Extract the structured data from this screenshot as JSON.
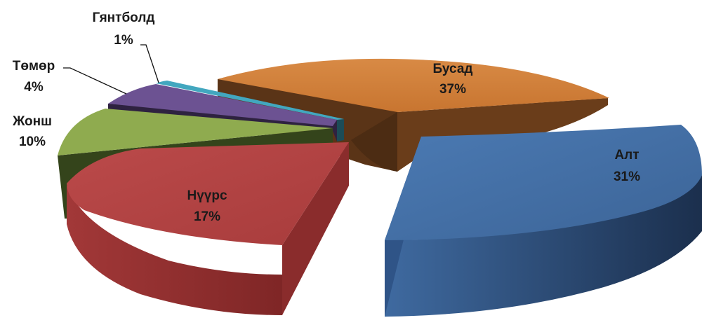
{
  "chart_data": {
    "type": "pie",
    "style": "3d-exploded",
    "title": "",
    "slices": [
      {
        "label": "Бусад",
        "value": 37,
        "value_label": "37%",
        "color": "#d07f37",
        "side_color": "#5a3417"
      },
      {
        "label": "Алт",
        "value": 31,
        "value_label": "31%",
        "color": "#4471a8",
        "side_color": "#1e3556"
      },
      {
        "label": "Нүүрс",
        "value": 17,
        "value_label": "17%",
        "color": "#b54444",
        "side_color": "#9a3232"
      },
      {
        "label": "Жонш",
        "value": 10,
        "value_label": "10%",
        "color": "#8fab4f",
        "side_color": "#34441b"
      },
      {
        "label": "Төмөр",
        "value": 4,
        "value_label": "4%",
        "color": "#6c5292",
        "side_color": "#2e2240"
      },
      {
        "label": "Гянтболд",
        "value": 1,
        "value_label": "1%",
        "color": "#42a7bf",
        "side_color": "#1c4c57"
      }
    ],
    "legend": "none"
  }
}
